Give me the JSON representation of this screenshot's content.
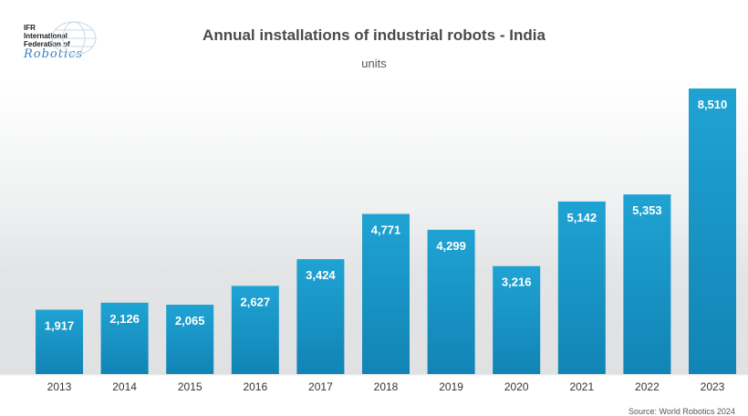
{
  "logo": {
    "line1": "IFR",
    "line2": "International",
    "line3": "Federation of",
    "script": "Robotics"
  },
  "title": "Annual installations of industrial robots - India",
  "subtitle": "units",
  "source": "Source: World Robotics 2024",
  "colors": {
    "bar_top": "#1fa3d3",
    "bar_bottom": "#1184b5",
    "label_text": "#ffffff",
    "axis_text": "#333333"
  },
  "chart_data": {
    "type": "bar",
    "categories": [
      "2013",
      "2014",
      "2015",
      "2016",
      "2017",
      "2018",
      "2019",
      "2020",
      "2021",
      "2022",
      "2023"
    ],
    "values": [
      1917,
      2126,
      2065,
      2627,
      3424,
      4771,
      4299,
      3216,
      5142,
      5353,
      8510
    ],
    "value_labels": [
      "1,917",
      "2,126",
      "2,065",
      "2,627",
      "3,424",
      "4,771",
      "4,299",
      "3,216",
      "5,142",
      "5,353",
      "8,510"
    ],
    "title": "Annual installations of industrial robots - India",
    "ylabel": "units",
    "ylim": [
      0,
      9000
    ],
    "grid": false,
    "legend": "none"
  }
}
